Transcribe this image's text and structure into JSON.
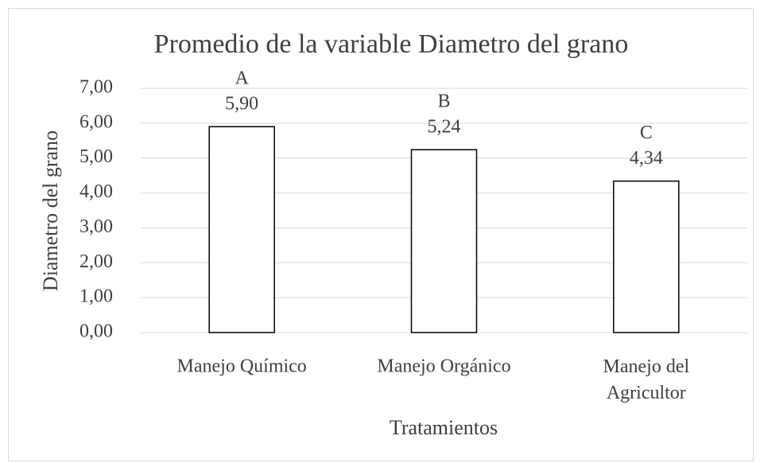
{
  "chart_data": {
    "type": "bar",
    "title": "Promedio de la variable Diametro del grano",
    "x_label": "Tratamientos",
    "y_label": "Diametro del grano",
    "categories": [
      "Manejo Químico",
      "Manejo Orgánico",
      "Manejo del Agricultor"
    ],
    "values": [
      5.9,
      5.24,
      4.34
    ],
    "value_labels": [
      "5,90",
      "5,24",
      "4,34"
    ],
    "annotations": [
      "A",
      "B",
      "C"
    ],
    "color": "#ffffff",
    "edgecolor": "#000000",
    "ylim": [
      0,
      7
    ],
    "yticks": [
      {
        "value": 0,
        "label": "0,00"
      },
      {
        "value": 1,
        "label": "1,00"
      },
      {
        "value": 2,
        "label": "2,00"
      },
      {
        "value": 3,
        "label": "3,00"
      },
      {
        "value": 4,
        "label": "4,00"
      },
      {
        "value": 5,
        "label": "5,00"
      },
      {
        "value": 6,
        "label": "6,00"
      },
      {
        "value": 7,
        "label": "7,00"
      }
    ],
    "grid": true
  }
}
